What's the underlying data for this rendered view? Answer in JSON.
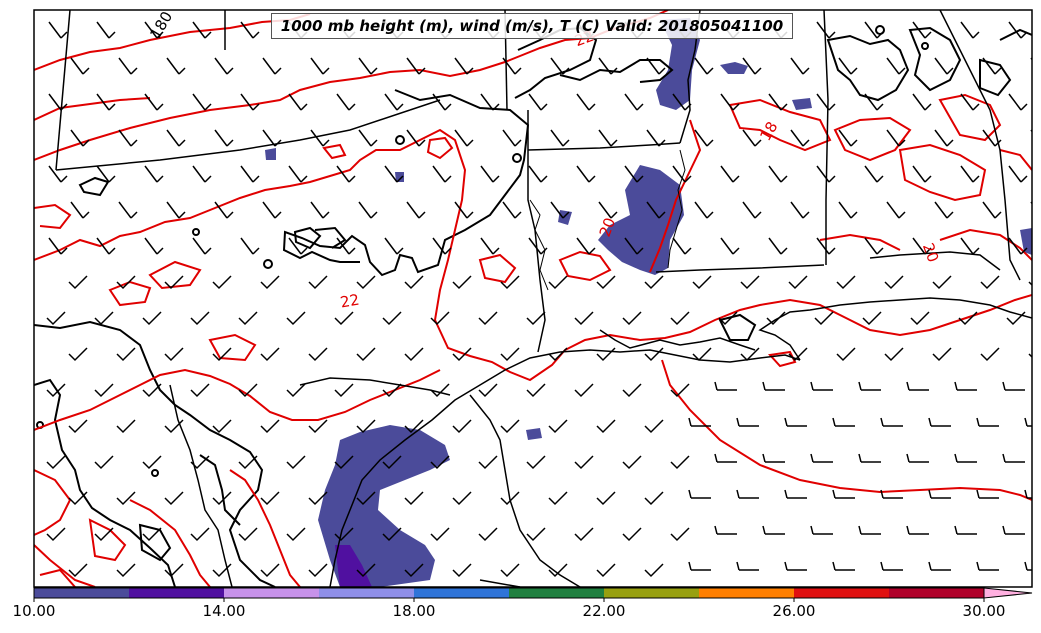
{
  "title": "1000 mb height (m), wind (m/s), T (C) Valid: 201805041100",
  "contour_labels": {
    "height": [
      "180"
    ],
    "temperature": [
      "22",
      "20",
      "18",
      "20",
      "22"
    ]
  },
  "colorbar": {
    "tick_labels": [
      "10.00",
      "14.00",
      "18.00",
      "22.00",
      "26.00",
      "30.00"
    ],
    "min": 10,
    "max": 30,
    "step": 2,
    "colors": [
      "#4b4b9a",
      "#5010a0",
      "#c792ea",
      "#8f8fe8",
      "#2f74d8",
      "#208040",
      "#98a010",
      "#ff7f00",
      "#e01010",
      "#b0002a",
      "#ff3fa0",
      "#ffb0e0"
    ],
    "extend": "max"
  },
  "colors": {
    "temperature_contour": "#e00000",
    "height_contour": "#000000",
    "shading": "#4b4b9a"
  }
}
